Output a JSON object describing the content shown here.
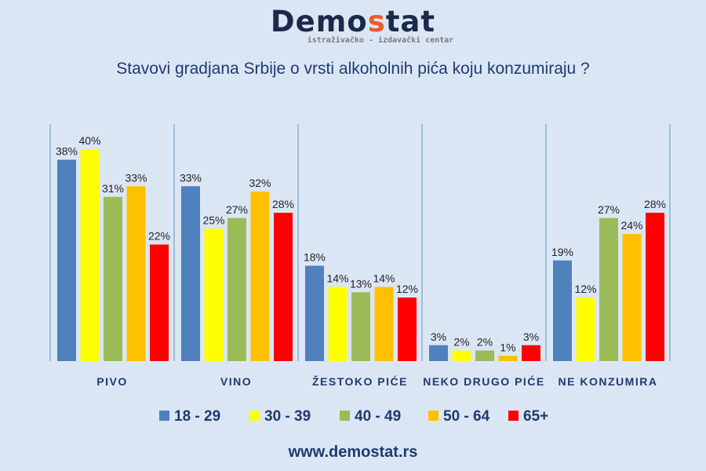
{
  "logo": {
    "name_part1": "Demo",
    "name_accent": "s",
    "name_part2": "tat",
    "tagline": "istraživačko - izdavački centar"
  },
  "title": "Stavovi gradjana Srbije o vrsti alkoholnih pića koju konzumiraju ?",
  "url": "www.demostat.rs",
  "chart_data": {
    "type": "bar",
    "title": "Stavovi gradjana Srbije o vrsti alkoholnih pića koju konzumiraju ?",
    "categories": [
      "PIVO",
      "VINO",
      "ŽESTOKO PIĆE",
      "NEKO DRUGO PIĆE",
      "NE KONZUMIRA"
    ],
    "series": [
      {
        "name": "18 - 29",
        "color": "#4f81bd",
        "values": [
          38,
          33,
          18,
          3,
          19
        ]
      },
      {
        "name": "30 - 39",
        "color": "#ffff00",
        "values": [
          40,
          25,
          14,
          2,
          12
        ]
      },
      {
        "name": "40 - 49",
        "color": "#9bbb59",
        "values": [
          31,
          27,
          13,
          2,
          27
        ]
      },
      {
        "name": "50 - 64",
        "color": "#ffc000",
        "values": [
          33,
          32,
          14,
          1,
          24
        ]
      },
      {
        "name": "65+",
        "color": "#ff0000",
        "values": [
          22,
          28,
          12,
          3,
          28
        ]
      }
    ],
    "value_suffix": "%",
    "ylim": [
      0,
      40
    ],
    "legend": "bottom"
  }
}
